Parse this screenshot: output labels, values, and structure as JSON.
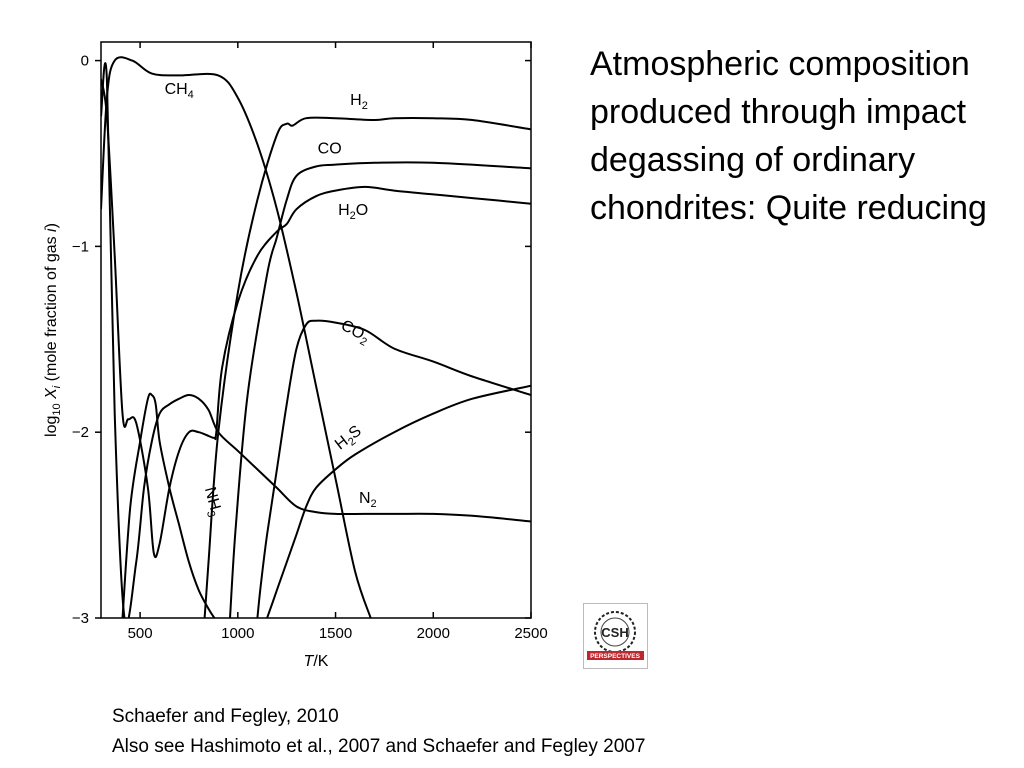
{
  "slide": {
    "title": "Atmospheric composition produced through impact degassing of ordinary chondrites: Quite reducing",
    "citation_line1": "Schaefer and Fegley, 2010",
    "citation_line2": "Also see Hashimoto et al., 2007 and Schaefer and Fegley 2007",
    "logo": {
      "line1": "CSH",
      "line2": "PERSPECTIVES",
      "icon": "csh-perspectives-logo",
      "accent_color": "#c0262d"
    }
  },
  "chart_data": {
    "type": "line",
    "xlabel": "T/K",
    "ylabel": "log10 Xi (mole fraction of gas i)",
    "xlim": [
      300,
      2500
    ],
    "ylim": [
      -3,
      0.1
    ],
    "xticks": [
      500,
      1000,
      1500,
      2000,
      2500
    ],
    "yticks": [
      0,
      -1,
      -2,
      -3
    ],
    "xtick_labels": [
      "500",
      "1000",
      "1500",
      "2000",
      "2500"
    ],
    "ytick_labels": [
      "0",
      "−1",
      "−2",
      "−3"
    ],
    "grid": false,
    "series": [
      {
        "name": "CH4",
        "label_main": "CH",
        "label_sub": "4",
        "x": [
          300,
          330,
          370,
          460,
          560,
          700,
          900,
          1000,
          1100,
          1200,
          1300,
          1400,
          1500,
          1600,
          1680
        ],
        "y": [
          -0.8,
          -0.2,
          0.0,
          0.0,
          -0.07,
          -0.08,
          -0.08,
          -0.2,
          -0.45,
          -0.8,
          -1.25,
          -1.75,
          -2.25,
          -2.75,
          -3.0
        ]
      },
      {
        "name": "H2",
        "label_main": "H",
        "label_sub": "2",
        "x": [
          830,
          850,
          900,
          1000,
          1100,
          1200,
          1250,
          1280,
          1350,
          1500,
          1700,
          1800,
          2000,
          2200,
          2500
        ],
        "y": [
          -3.0,
          -2.7,
          -2.0,
          -1.25,
          -0.75,
          -0.4,
          -0.34,
          -0.35,
          -0.31,
          -0.31,
          -0.32,
          -0.31,
          -0.31,
          -0.32,
          -0.37
        ]
      },
      {
        "name": "CO",
        "label_main": "CO",
        "label_sub": "",
        "x": [
          960,
          990,
          1050,
          1150,
          1200,
          1250,
          1300,
          1400,
          1500,
          1700,
          2000,
          2500
        ],
        "y": [
          -3.0,
          -2.5,
          -1.8,
          -1.15,
          -0.95,
          -0.75,
          -0.62,
          -0.57,
          -0.56,
          -0.55,
          -0.55,
          -0.58
        ]
      },
      {
        "name": "H2O",
        "label_main": "H",
        "label_sub": "2",
        "label_tail": "O",
        "x": [
          300,
          330,
          370,
          410,
          440,
          480,
          540,
          570,
          600,
          650,
          700,
          750,
          800,
          850,
          880,
          890,
          920,
          1000,
          1100,
          1200,
          1250,
          1300,
          1400,
          1500,
          1650,
          1800,
          2000,
          2200,
          2500
        ],
        "y": [
          -0.1,
          -0.3,
          -1.05,
          -1.9,
          -1.93,
          -1.95,
          -2.3,
          -2.65,
          -2.6,
          -2.3,
          -2.1,
          -2.0,
          -2.0,
          -2.02,
          -2.03,
          -2.0,
          -1.65,
          -1.3,
          -1.05,
          -0.92,
          -0.88,
          -0.8,
          -0.73,
          -0.7,
          -0.68,
          -0.7,
          -0.72,
          -0.74,
          -0.77
        ]
      },
      {
        "name": "CO2",
        "label_main": "CO",
        "label_sub": "2",
        "x": [
          1100,
          1120,
          1150,
          1200,
          1250,
          1300,
          1350,
          1400,
          1500,
          1650,
          1800,
          2000,
          2200,
          2500
        ],
        "y": [
          -3.0,
          -2.8,
          -2.55,
          -2.2,
          -1.85,
          -1.55,
          -1.42,
          -1.4,
          -1.41,
          -1.45,
          -1.55,
          -1.62,
          -1.7,
          -1.8
        ]
      },
      {
        "name": "H2S",
        "label_main": "H",
        "label_sub": "2",
        "label_tail": "S",
        "x": [
          1150,
          1200,
          1250,
          1300,
          1350,
          1400,
          1500,
          1600,
          1800,
          2000,
          2200,
          2500
        ],
        "y": [
          -3.0,
          -2.85,
          -2.7,
          -2.55,
          -2.4,
          -2.3,
          -2.2,
          -2.12,
          -2.0,
          -1.9,
          -1.82,
          -1.75
        ]
      },
      {
        "name": "N2",
        "label_main": "N",
        "label_sub": "2",
        "x": [
          300,
          330,
          370,
          420,
          480,
          520,
          560,
          600,
          650,
          700,
          750,
          800,
          850,
          900,
          1000,
          1100,
          1200,
          1300,
          1400,
          1500,
          1650,
          1800,
          2000,
          2200,
          2500
        ],
        "y": [
          -0.3,
          -0.1,
          -1.9,
          -3.0,
          -2.7,
          -2.3,
          -2.05,
          -1.9,
          -1.85,
          -1.82,
          -1.8,
          -1.82,
          -1.88,
          -2.0,
          -2.1,
          -2.2,
          -2.3,
          -2.4,
          -2.43,
          -2.44,
          -2.44,
          -2.44,
          -2.44,
          -2.45,
          -2.48
        ]
      },
      {
        "name": "NH3",
        "label_main": "NH",
        "label_sub": "3",
        "x": [
          410,
          450,
          500,
          540,
          560,
          580,
          600,
          650,
          700,
          750,
          800,
          850,
          880
        ],
        "y": [
          -3.0,
          -2.4,
          -2.05,
          -1.82,
          -1.8,
          -1.85,
          -2.05,
          -2.3,
          -2.5,
          -2.7,
          -2.85,
          -2.95,
          -3.0
        ]
      }
    ],
    "labels": [
      {
        "series": "CH4",
        "x": 700,
        "y": -0.18,
        "rot": 0
      },
      {
        "series": "H2",
        "x": 1620,
        "y": -0.24,
        "rot": 0
      },
      {
        "series": "CO",
        "x": 1470,
        "y": -0.5,
        "rot": 0
      },
      {
        "series": "H2O",
        "x": 1590,
        "y": -0.83,
        "rot": 0
      },
      {
        "series": "CO2",
        "x": 1590,
        "y": -1.48,
        "rot": 28
      },
      {
        "series": "H2S",
        "x": 1580,
        "y": -2.05,
        "rot": -38
      },
      {
        "series": "N2",
        "x": 1665,
        "y": -2.38,
        "rot": 0
      },
      {
        "series": "NH3",
        "x": 850,
        "y": -2.38,
        "rot": 75
      }
    ]
  }
}
